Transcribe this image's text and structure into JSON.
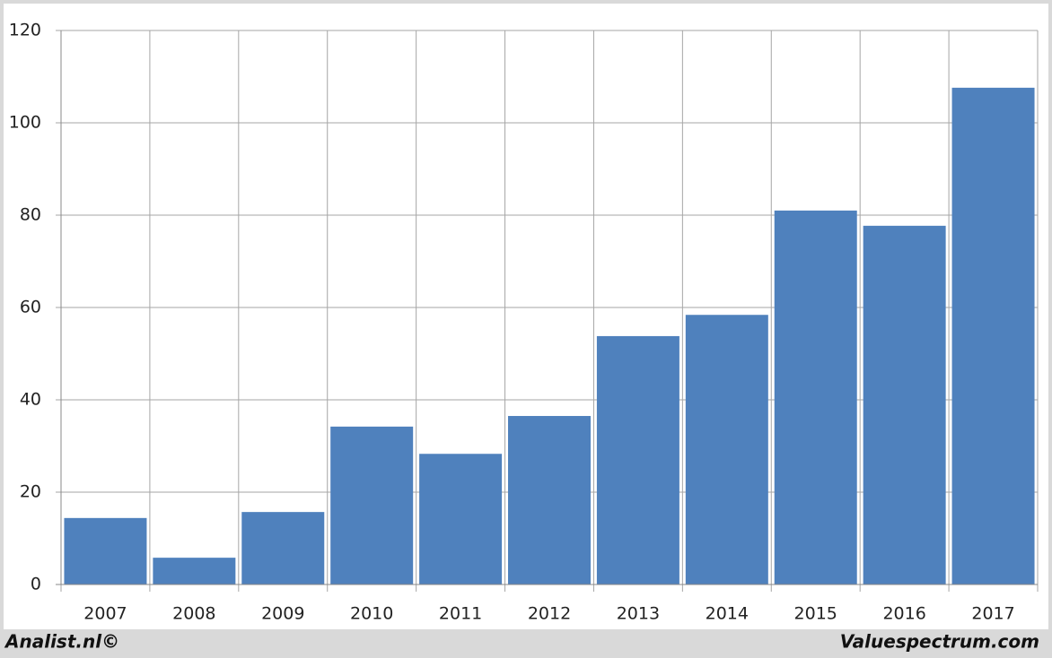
{
  "chart_data": {
    "type": "bar",
    "categories": [
      "2007",
      "2008",
      "2009",
      "2010",
      "2011",
      "2012",
      "2013",
      "2014",
      "2015",
      "2016",
      "2017"
    ],
    "values": [
      14.4,
      5.8,
      15.7,
      34.2,
      28.3,
      36.5,
      53.8,
      58.4,
      81.0,
      77.7,
      107.6
    ],
    "color": "#4f81bd",
    "ylim": [
      0,
      120
    ],
    "yticks": [
      0,
      20,
      40,
      60,
      80,
      100,
      120
    ],
    "grid": true,
    "credits": [
      "Analist.nl©",
      "Valuespectrum.com"
    ]
  }
}
